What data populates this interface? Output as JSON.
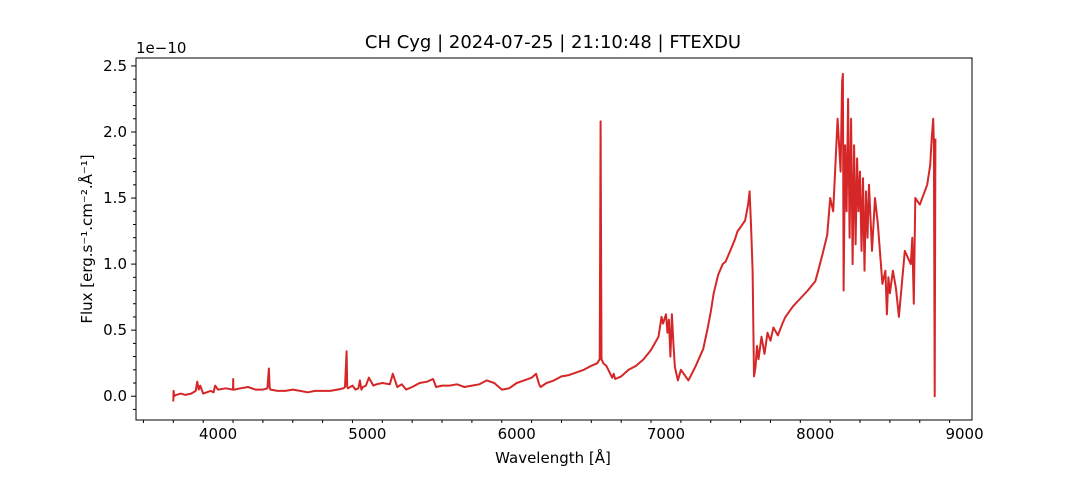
{
  "chart_data": {
    "type": "line",
    "title": "CH Cyg | 2024-07-25 | 21:10:48 | FTEXDU",
    "xlabel": "Wavelength [Å]",
    "ylabel": "Flux [erg.s⁻¹.cm⁻².Å⁻¹]",
    "y_offset_label": "1e−10",
    "xlim": [
      3450,
      9050
    ],
    "ylim": [
      -0.18,
      2.56
    ],
    "y_scale_factor": 1e-10,
    "xticks": [
      4000,
      5000,
      6000,
      7000,
      8000,
      9000
    ],
    "xtick_labels": [
      "4000",
      "5000",
      "6000",
      "7000",
      "8000",
      "9000"
    ],
    "yticks": [
      0.0,
      0.5,
      1.0,
      1.5,
      2.0,
      2.5
    ],
    "ytick_labels": [
      "0.0",
      "0.5",
      "1.0",
      "1.5",
      "2.0",
      "2.5"
    ],
    "grid": false,
    "line_color": "#d62728",
    "series": [
      {
        "x": [
          3700,
          3702,
          3705,
          3720,
          3750,
          3780,
          3820,
          3850,
          3860,
          3870,
          3880,
          3900,
          3950,
          3970,
          3980,
          4000,
          4050,
          4100,
          4101,
          4102,
          4110,
          4150,
          4200,
          4250,
          4300,
          4330,
          4340,
          4345,
          4350,
          4400,
          4450,
          4500,
          4550,
          4600,
          4650,
          4700,
          4750,
          4800,
          4840,
          4850,
          4861,
          4865,
          4870,
          4900,
          4920,
          4940,
          4950,
          4960,
          4970,
          4990,
          5010,
          5040,
          5060,
          5100,
          5150,
          5170,
          5200,
          5230,
          5260,
          5300,
          5350,
          5400,
          5440,
          5460,
          5500,
          5550,
          5600,
          5650,
          5700,
          5750,
          5800,
          5850,
          5900,
          5950,
          6000,
          6050,
          6100,
          6130,
          6150,
          6160,
          6200,
          6250,
          6300,
          6350,
          6400,
          6450,
          6500,
          6540,
          6556,
          6562,
          6568,
          6580,
          6600,
          6640,
          6650,
          6660,
          6700,
          6750,
          6800,
          6850,
          6900,
          6950,
          6970,
          6980,
          7000,
          7010,
          7020,
          7030,
          7040,
          7050,
          7060,
          7080,
          7100,
          7150,
          7200,
          7250,
          7280,
          7300,
          7320,
          7350,
          7380,
          7400,
          7430,
          7460,
          7480,
          7500,
          7530,
          7550,
          7560,
          7570,
          7580,
          7590,
          7600,
          7610,
          7620,
          7640,
          7660,
          7680,
          7700,
          7720,
          7750,
          7780,
          7800,
          7850,
          7900,
          7950,
          8000,
          8020,
          8050,
          8080,
          8100,
          8120,
          8150,
          8170,
          8180,
          8185,
          8190,
          8200,
          8210,
          8220,
          8230,
          8240,
          8250,
          8260,
          8270,
          8280,
          8290,
          8300,
          8310,
          8320,
          8330,
          8340,
          8350,
          8360,
          8380,
          8400,
          8420,
          8440,
          8450,
          8470,
          8480,
          8490,
          8500,
          8520,
          8540,
          8560,
          8600,
          8640,
          8650,
          8660,
          8670,
          8700,
          8750,
          8770,
          8780,
          8790,
          8795,
          8800,
          8805
        ],
        "y": [
          -0.04,
          0.04,
          0.0,
          0.01,
          0.02,
          0.01,
          0.02,
          0.04,
          0.11,
          0.05,
          0.08,
          0.02,
          0.04,
          0.03,
          0.08,
          0.05,
          0.06,
          0.05,
          0.13,
          0.05,
          0.05,
          0.06,
          0.07,
          0.05,
          0.05,
          0.06,
          0.21,
          0.07,
          0.05,
          0.04,
          0.04,
          0.05,
          0.04,
          0.03,
          0.04,
          0.04,
          0.04,
          0.05,
          0.06,
          0.07,
          0.34,
          0.07,
          0.06,
          0.08,
          0.05,
          0.06,
          0.12,
          0.05,
          0.07,
          0.08,
          0.14,
          0.08,
          0.09,
          0.1,
          0.09,
          0.17,
          0.07,
          0.09,
          0.05,
          0.07,
          0.1,
          0.11,
          0.13,
          0.07,
          0.08,
          0.08,
          0.09,
          0.07,
          0.08,
          0.09,
          0.12,
          0.1,
          0.05,
          0.06,
          0.1,
          0.12,
          0.14,
          0.17,
          0.09,
          0.07,
          0.1,
          0.12,
          0.15,
          0.16,
          0.18,
          0.2,
          0.23,
          0.25,
          0.28,
          2.08,
          0.28,
          0.25,
          0.23,
          0.14,
          0.17,
          0.13,
          0.15,
          0.2,
          0.23,
          0.28,
          0.35,
          0.45,
          0.6,
          0.55,
          0.62,
          0.48,
          0.58,
          0.3,
          0.62,
          0.4,
          0.22,
          0.12,
          0.2,
          0.12,
          0.23,
          0.36,
          0.52,
          0.64,
          0.78,
          0.92,
          1.0,
          1.02,
          1.1,
          1.18,
          1.25,
          1.28,
          1.33,
          1.45,
          1.55,
          1.28,
          0.95,
          0.15,
          0.22,
          0.38,
          0.28,
          0.45,
          0.32,
          0.48,
          0.42,
          0.52,
          0.46,
          0.55,
          0.6,
          0.68,
          0.74,
          0.8,
          0.87,
          0.95,
          1.08,
          1.22,
          1.5,
          1.4,
          2.1,
          1.7,
          2.38,
          2.44,
          0.8,
          1.9,
          1.4,
          2.25,
          1.2,
          2.1,
          1.0,
          1.9,
          1.15,
          1.8,
          1.4,
          1.7,
          1.1,
          1.65,
          0.95,
          1.55,
          1.2,
          1.6,
          1.1,
          1.5,
          1.3,
          1.0,
          0.85,
          0.95,
          0.62,
          0.9,
          0.78,
          0.95,
          0.82,
          0.6,
          1.1,
          1.0,
          1.2,
          0.7,
          1.5,
          1.45,
          1.6,
          1.75,
          1.95,
          2.1,
          1.9,
          0.0,
          1.95
        ]
      }
    ]
  }
}
